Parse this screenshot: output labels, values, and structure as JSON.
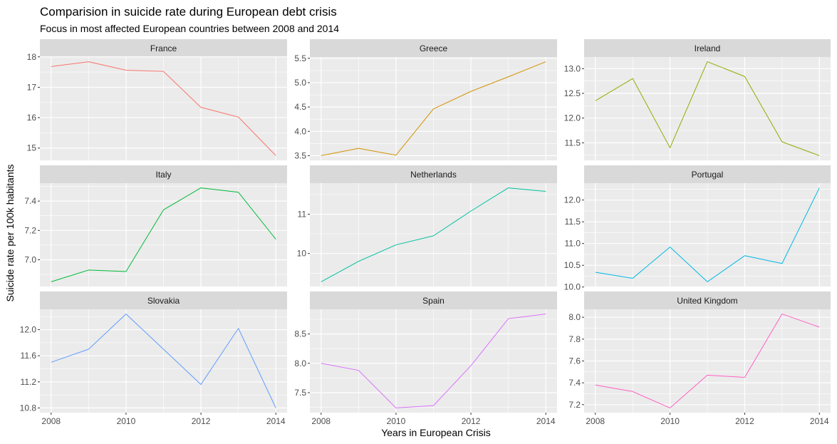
{
  "chart": {
    "title": "Comparision in suicide rate during European debt crisis",
    "subtitle": "Focus in most affected European countries between 2008 and 2014",
    "xlabel": "Years in European Crisis",
    "ylabel": "Suicide rate per 100k habitants"
  },
  "chart_data": {
    "type": "line",
    "facets": "wrap 3x3, free y scales, shared x",
    "x": [
      2008,
      2009,
      2010,
      2011,
      2012,
      2013,
      2014
    ],
    "x_ticks": [
      2008,
      2010,
      2012,
      2014
    ],
    "xlim": [
      2008,
      2014
    ],
    "grid": true,
    "legend": "none",
    "panels": [
      {
        "name": "France",
        "color": "#F8766D",
        "values": [
          17.68,
          17.84,
          17.56,
          17.52,
          16.34,
          16.02,
          14.75
        ],
        "ylim": [
          14.75,
          17.84
        ],
        "y_ticks": [
          15,
          16,
          17,
          18
        ]
      },
      {
        "name": "Greece",
        "color": "#D39200",
        "values": [
          3.5,
          3.65,
          3.51,
          4.46,
          4.82,
          5.12,
          5.43
        ],
        "ylim": [
          3.5,
          5.43
        ],
        "y_ticks": [
          3.5,
          4.0,
          4.5,
          5.0,
          5.5
        ]
      },
      {
        "name": "Ireland",
        "color": "#93AA00",
        "values": [
          12.35,
          12.8,
          11.4,
          13.14,
          12.84,
          11.52,
          11.24
        ],
        "ylim": [
          11.24,
          13.14
        ],
        "y_ticks": [
          11.5,
          12.0,
          12.5,
          13.0
        ]
      },
      {
        "name": "Italy",
        "color": "#00BA38",
        "values": [
          6.85,
          6.93,
          6.92,
          7.34,
          7.49,
          7.46,
          7.14
        ],
        "ylim": [
          6.85,
          7.49
        ],
        "y_ticks": [
          7.0,
          7.2,
          7.4
        ]
      },
      {
        "name": "Netherlands",
        "color": "#00C19F",
        "values": [
          9.28,
          9.8,
          10.22,
          10.45,
          11.08,
          11.67,
          11.58
        ],
        "ylim": [
          9.28,
          11.67
        ],
        "y_ticks": [
          10,
          11
        ]
      },
      {
        "name": "Portugal",
        "color": "#00B9E3",
        "values": [
          10.34,
          10.2,
          10.92,
          10.12,
          10.72,
          10.54,
          12.28
        ],
        "ylim": [
          10.12,
          12.28
        ],
        "y_ticks": [
          10.0,
          10.5,
          11.0,
          11.5,
          12.0
        ]
      },
      {
        "name": "Slovakia",
        "color": "#619CFF",
        "values": [
          11.5,
          11.7,
          12.24,
          11.7,
          11.16,
          12.02,
          10.8
        ],
        "ylim": [
          10.8,
          12.24
        ],
        "y_ticks": [
          10.8,
          11.2,
          11.6,
          12.0
        ]
      },
      {
        "name": "Spain",
        "color": "#DB72FB",
        "values": [
          8.0,
          7.88,
          7.24,
          7.28,
          7.96,
          8.76,
          8.84
        ],
        "ylim": [
          7.24,
          8.84
        ],
        "y_ticks": [
          7.5,
          8.0,
          8.5
        ]
      },
      {
        "name": "United Kingdom",
        "color": "#FF61C3",
        "values": [
          7.38,
          7.32,
          7.17,
          7.47,
          7.45,
          8.03,
          7.91
        ],
        "ylim": [
          7.17,
          8.03
        ],
        "y_ticks": [
          7.2,
          7.4,
          7.6,
          7.8,
          8.0
        ]
      }
    ]
  }
}
